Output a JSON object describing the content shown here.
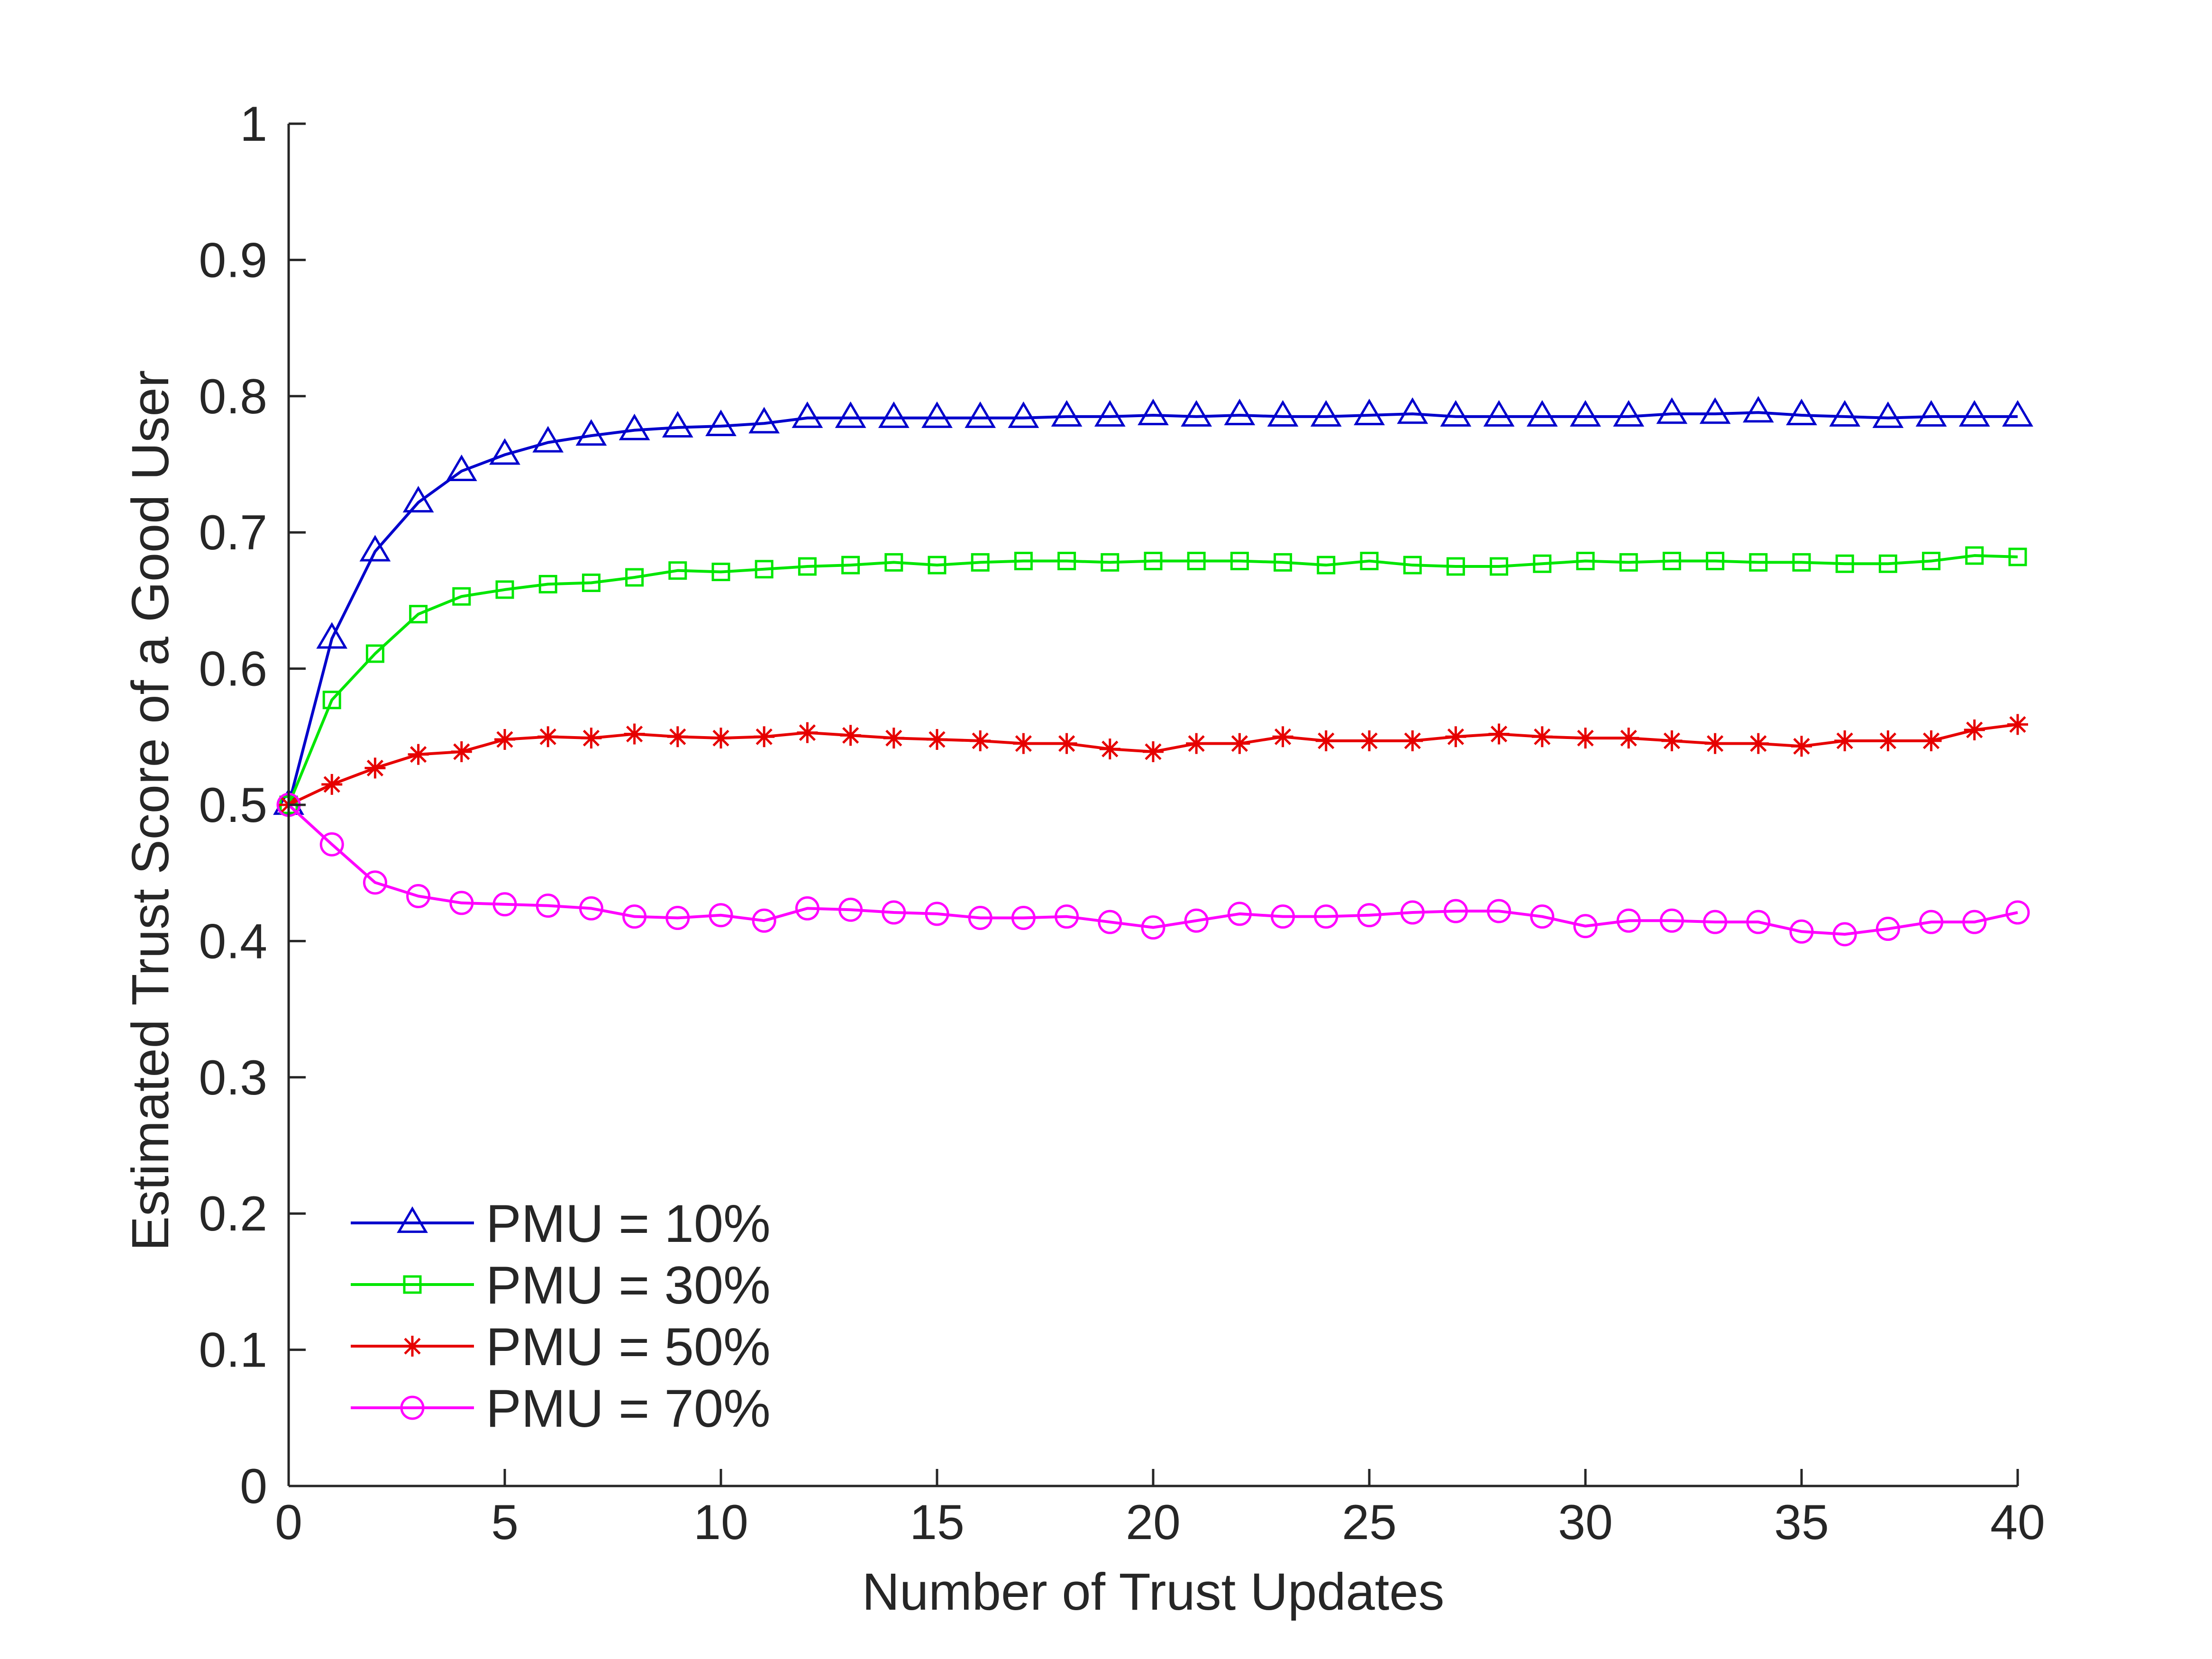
{
  "chart_data": {
    "type": "line",
    "title": "",
    "xlabel": "Number of Trust Updates",
    "ylabel": "Estimated Trust Score of a Good User",
    "xlim": [
      0,
      40
    ],
    "ylim": [
      0,
      1
    ],
    "xticks": [
      "0",
      "5",
      "10",
      "15",
      "20",
      "25",
      "30",
      "35",
      "40"
    ],
    "yticks": [
      "0",
      "0.1",
      "0.2",
      "0.3",
      "0.4",
      "0.5",
      "0.6",
      "0.7",
      "0.8",
      "0.9",
      "1"
    ],
    "grid": false,
    "legend_position": "bottom-left",
    "x": [
      0,
      1,
      2,
      3,
      4,
      5,
      6,
      7,
      8,
      9,
      10,
      11,
      12,
      13,
      14,
      15,
      16,
      17,
      18,
      19,
      20,
      21,
      22,
      23,
      24,
      25,
      26,
      27,
      28,
      29,
      30,
      31,
      32,
      33,
      34,
      35,
      36,
      37,
      38,
      39,
      40
    ],
    "series": [
      {
        "name": "PMU = 10%",
        "color": "#0000cc",
        "marker": "triangle",
        "values": [
          0.5,
          0.622,
          0.686,
          0.722,
          0.745,
          0.757,
          0.766,
          0.771,
          0.775,
          0.777,
          0.778,
          0.78,
          0.784,
          0.784,
          0.784,
          0.784,
          0.784,
          0.784,
          0.785,
          0.785,
          0.786,
          0.785,
          0.786,
          0.785,
          0.785,
          0.786,
          0.787,
          0.785,
          0.785,
          0.785,
          0.785,
          0.785,
          0.787,
          0.787,
          0.788,
          0.786,
          0.785,
          0.784,
          0.785,
          0.785,
          0.785
        ]
      },
      {
        "name": "PMU = 30%",
        "color": "#00e600",
        "marker": "square",
        "values": [
          0.5,
          0.577,
          0.611,
          0.64,
          0.653,
          0.658,
          0.662,
          0.663,
          0.667,
          0.672,
          0.671,
          0.673,
          0.675,
          0.676,
          0.678,
          0.676,
          0.678,
          0.679,
          0.679,
          0.678,
          0.679,
          0.679,
          0.679,
          0.678,
          0.676,
          0.679,
          0.676,
          0.675,
          0.675,
          0.677,
          0.679,
          0.678,
          0.679,
          0.679,
          0.678,
          0.678,
          0.677,
          0.677,
          0.679,
          0.683,
          0.682
        ]
      },
      {
        "name": "PMU = 50%",
        "color": "#e60000",
        "marker": "star",
        "values": [
          0.5,
          0.515,
          0.527,
          0.537,
          0.539,
          0.548,
          0.55,
          0.549,
          0.552,
          0.55,
          0.549,
          0.55,
          0.553,
          0.551,
          0.549,
          0.548,
          0.547,
          0.545,
          0.545,
          0.541,
          0.539,
          0.545,
          0.545,
          0.55,
          0.547,
          0.547,
          0.547,
          0.55,
          0.552,
          0.55,
          0.549,
          0.549,
          0.547,
          0.545,
          0.545,
          0.543,
          0.547,
          0.547,
          0.547,
          0.555,
          0.559
        ]
      },
      {
        "name": "PMU = 70%",
        "color": "#ff00ff",
        "marker": "circle",
        "values": [
          0.5,
          0.471,
          0.443,
          0.433,
          0.428,
          0.427,
          0.426,
          0.424,
          0.418,
          0.417,
          0.419,
          0.415,
          0.424,
          0.423,
          0.421,
          0.42,
          0.417,
          0.417,
          0.418,
          0.414,
          0.41,
          0.415,
          0.42,
          0.418,
          0.418,
          0.419,
          0.421,
          0.422,
          0.422,
          0.418,
          0.411,
          0.415,
          0.415,
          0.414,
          0.414,
          0.407,
          0.405,
          0.409,
          0.414,
          0.414,
          0.421
        ]
      }
    ]
  }
}
